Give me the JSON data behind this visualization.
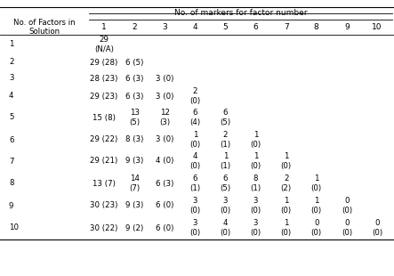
{
  "title": "No. of markers for factor number",
  "col_headers": [
    "1",
    "2",
    "3",
    "4",
    "5",
    "6",
    "7",
    "8",
    "9",
    "10"
  ],
  "row_header": "No. of Factors in\nSolution",
  "rows": [
    {
      "label": "1",
      "cells": [
        "29\n(N/A)",
        "",
        "",
        "",
        "",
        "",
        "",
        "",
        "",
        ""
      ]
    },
    {
      "label": "2",
      "cells": [
        "29 (28)",
        "6 (5)",
        "",
        "",
        "",
        "",
        "",
        "",
        "",
        ""
      ]
    },
    {
      "label": "3",
      "cells": [
        "28 (23)",
        "6 (3)",
        "3 (0)",
        "",
        "",
        "",
        "",
        "",
        "",
        ""
      ]
    },
    {
      "label": "4",
      "cells": [
        "29 (23)",
        "6 (3)",
        "3 (0)",
        "2\n(0)",
        "",
        "",
        "",
        "",
        "",
        ""
      ]
    },
    {
      "label": "5",
      "cells": [
        "15 (8)",
        "13\n(5)",
        "12\n(3)",
        "6\n(4)",
        "6\n(5)",
        "",
        "",
        "",
        "",
        ""
      ]
    },
    {
      "label": "6",
      "cells": [
        "29 (22)",
        "8 (3)",
        "3 (0)",
        "1\n(0)",
        "2\n(1)",
        "1\n(0)",
        "",
        "",
        "",
        ""
      ]
    },
    {
      "label": "7",
      "cells": [
        "29 (21)",
        "9 (3)",
        "4 (0)",
        "4\n(0)",
        "1\n(1)",
        "1\n(0)",
        "1\n(0)",
        "",
        "",
        ""
      ]
    },
    {
      "label": "8",
      "cells": [
        "13 (7)",
        "14\n(7)",
        "6 (3)",
        "6\n(1)",
        "6\n(5)",
        "8\n(1)",
        "2\n(2)",
        "1\n(0)",
        "",
        ""
      ]
    },
    {
      "label": "9",
      "cells": [
        "30 (23)",
        "9 (3)",
        "6 (0)",
        "3\n(0)",
        "3\n(0)",
        "3\n(0)",
        "1\n(0)",
        "1\n(0)",
        "0\n(0)",
        ""
      ]
    },
    {
      "label": "10",
      "cells": [
        "30 (22)",
        "9 (2)",
        "6 (0)",
        "3\n(0)",
        "4\n(0)",
        "3\n(0)",
        "1\n(0)",
        "0\n(0)",
        "0\n(0)",
        "0\n(0)"
      ]
    }
  ],
  "bg_color": "#ffffff",
  "text_color": "#000000",
  "font_size": 6.2,
  "header_font_size": 6.5
}
